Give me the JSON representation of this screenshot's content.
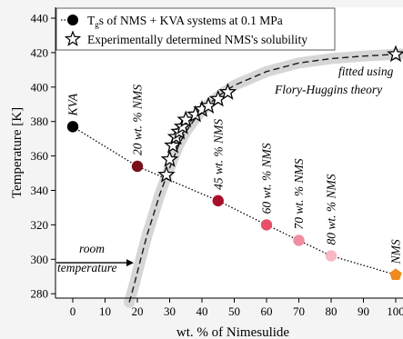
{
  "chart_data": {
    "type": "scatter",
    "xlabel": "wt. % of Nimesulide",
    "ylabel": "Temperature [K]",
    "xlim": [
      -5,
      102
    ],
    "ylim": [
      275,
      442
    ],
    "x_ticks": [
      "0",
      "10",
      "20",
      "30",
      "40",
      "50",
      "60",
      "70",
      "80",
      "90",
      "100"
    ],
    "y_ticks": [
      "280",
      "300",
      "320",
      "340",
      "360",
      "380",
      "400",
      "420",
      "440"
    ],
    "legend": {
      "placement": "top-left",
      "entries": [
        {
          "label_pre": "T",
          "label_sub": "g",
          "label_post": "s of NMS + KVA systems at 0.1 MPa",
          "marker": "circle"
        },
        {
          "label": "Experimentally determined NMS's solubility",
          "marker": "star"
        }
      ]
    },
    "series": [
      {
        "name": "Tgs of NMS + KVA systems at 0.1 MPa",
        "marker": "circle",
        "points": [
          {
            "x": 0,
            "y": 377,
            "label": "KVA",
            "color": "#000000"
          },
          {
            "x": 20,
            "y": 354,
            "label": "20 wt. % NMS",
            "color": "#7a0f1c"
          },
          {
            "x": 45,
            "y": 334,
            "label": "45 wt. % NMS",
            "color": "#a8102a"
          },
          {
            "x": 60,
            "y": 320,
            "label": "60 wt. % NMS",
            "color": "#e8506a"
          },
          {
            "x": 70,
            "y": 311,
            "label": "70 wt. % NMS",
            "color": "#ef8ea0"
          },
          {
            "x": 80,
            "y": 302,
            "label": "80 wt. % NMS",
            "color": "#f7b8c4"
          },
          {
            "x": 100,
            "y": 291,
            "label": "NMS",
            "color": "#f08a1e"
          }
        ]
      },
      {
        "name": "Experimentally determined NMS's solubility",
        "marker": "star",
        "points": [
          {
            "x": 29,
            "y": 349
          },
          {
            "x": 30,
            "y": 358
          },
          {
            "x": 31,
            "y": 366
          },
          {
            "x": 32,
            "y": 371
          },
          {
            "x": 33,
            "y": 374
          },
          {
            "x": 34,
            "y": 377
          },
          {
            "x": 35,
            "y": 381
          },
          {
            "x": 38,
            "y": 384
          },
          {
            "x": 40,
            "y": 387
          },
          {
            "x": 42,
            "y": 389
          },
          {
            "x": 45,
            "y": 393
          },
          {
            "x": 48,
            "y": 397
          },
          {
            "x": 100,
            "y": 419
          }
        ]
      }
    ],
    "fit_curve": [
      [
        17.5,
        275
      ],
      [
        19,
        285
      ],
      [
        21,
        300
      ],
      [
        23,
        314
      ],
      [
        25,
        326
      ],
      [
        27,
        338
      ],
      [
        29,
        348
      ],
      [
        31,
        358
      ],
      [
        33,
        367
      ],
      [
        35,
        374
      ],
      [
        38,
        382
      ],
      [
        42,
        390
      ],
      [
        46,
        396
      ],
      [
        50,
        401
      ],
      [
        55,
        405
      ],
      [
        60,
        409
      ],
      [
        70,
        414
      ],
      [
        80,
        416.5
      ],
      [
        90,
        418
      ],
      [
        100,
        419
      ],
      [
        102,
        419.2
      ]
    ],
    "tg_line": [
      [
        0,
        377
      ],
      [
        20,
        354
      ],
      [
        45,
        334
      ],
      [
        60,
        320
      ],
      [
        70,
        311
      ],
      [
        80,
        302
      ],
      [
        100,
        291
      ]
    ],
    "annotations": {
      "fit_line1": "fitted using",
      "fit_line2": "Flory-Huggins theory",
      "room_line1": "room",
      "room_line2": "temperature",
      "room_temperature": 298
    },
    "grid": false
  }
}
